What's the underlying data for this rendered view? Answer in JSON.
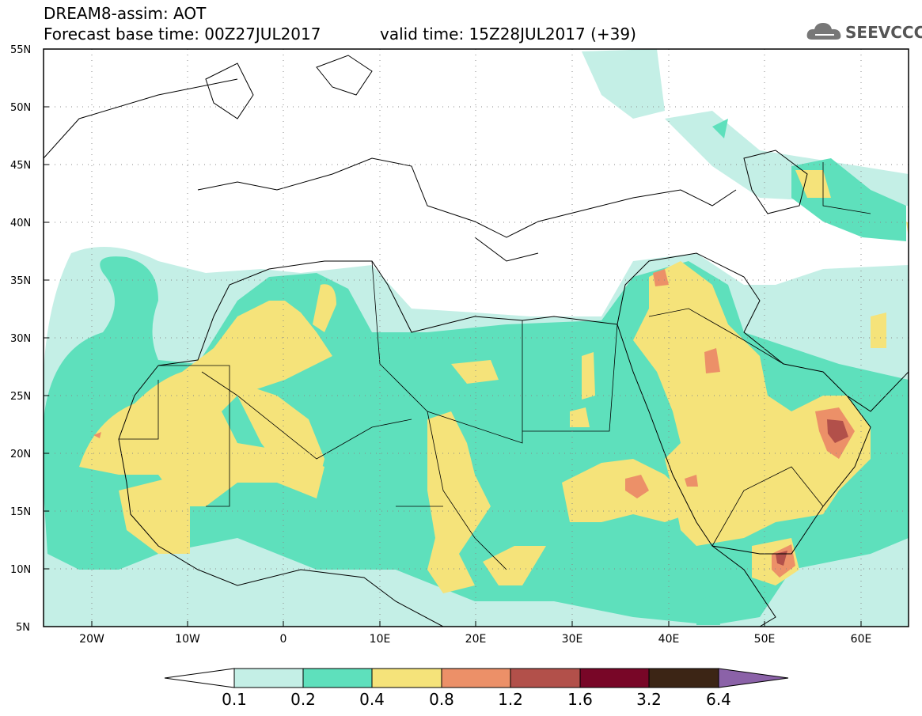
{
  "header": {
    "title_line1": "DREAM8-assim: AOT",
    "title_line2": "Forecast base time: 00Z27JUL2017",
    "valid_time": "valid time: 15Z28JUL2017 (+39)",
    "logo_text": "SEEVCCC"
  },
  "map": {
    "projection": "cylindrical",
    "lon_range": [
      -25,
      65
    ],
    "lat_range": [
      5,
      55
    ],
    "lat_labels": [
      "55N",
      "50N",
      "45N",
      "40N",
      "35N",
      "30N",
      "25N",
      "20N",
      "15N",
      "10N",
      "5N"
    ],
    "lon_labels": [
      "20W",
      "10W",
      "0",
      "10E",
      "20E",
      "30E",
      "40E",
      "50E",
      "60E"
    ],
    "grid": "dotted"
  },
  "colorbar": {
    "labels": [
      "0.1",
      "0.2",
      "0.4",
      "0.8",
      "1.2",
      "1.6",
      "3.2",
      "6.4"
    ],
    "colors": [
      "#c4efe6",
      "#5ee0bc",
      "#f5e37a",
      "#ec9068",
      "#b2504a",
      "#780627",
      "#3c2515",
      "#8b62a8"
    ],
    "extend": "both"
  },
  "colors": {
    "level_0_1": "#c4efe6",
    "level_0_2": "#5ee0bc",
    "level_0_4": "#f5e37a",
    "level_0_8": "#ec9068",
    "level_1_2": "#b2504a",
    "level_1_6": "#780627",
    "level_3_2": "#3c2515"
  }
}
